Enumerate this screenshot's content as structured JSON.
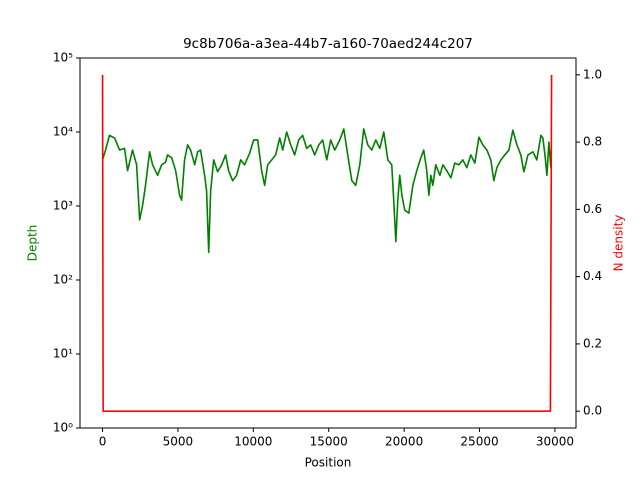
{
  "chart_data": {
    "type": "line",
    "title": "9c8b706a-a3ea-44b7-a160-70aed244c207",
    "xlabel": "Position",
    "ylabel": "Depth",
    "y2label": "N density",
    "yscale": "log",
    "xlim": [
      -1495,
      31398
    ],
    "xticks": [
      0,
      5000,
      10000,
      15000,
      20000,
      25000,
      30000
    ],
    "ylim": [
      1,
      100000
    ],
    "yticks": [
      {
        "value": 1,
        "label": "10⁰"
      },
      {
        "value": 10,
        "label": "10¹"
      },
      {
        "value": 100,
        "label": "10²"
      },
      {
        "value": 1000,
        "label": "10³"
      },
      {
        "value": 10000,
        "label": "10⁴"
      },
      {
        "value": 100000,
        "label": "10⁵"
      }
    ],
    "y2lim": [
      -0.05,
      1.05
    ],
    "y2ticks": [
      {
        "value": 0,
        "label": "0.0"
      },
      0.2,
      0.4,
      0.6,
      0.8,
      {
        "value": 1,
        "label": "1.0"
      }
    ],
    "series": [
      {
        "color": "#008000",
        "axis": "y",
        "x": [
          0,
          200,
          460,
          800,
          1130,
          1460,
          1660,
          1990,
          2260,
          2460,
          2650,
          2850,
          3120,
          3320,
          3650,
          3920,
          4180,
          4310,
          4580,
          4850,
          5110,
          5240,
          5440,
          5640,
          5840,
          6110,
          6310,
          6500,
          6770,
          6900,
          7040,
          7170,
          7370,
          7630,
          7900,
          8160,
          8360,
          8630,
          8890,
          9160,
          9420,
          9760,
          10020,
          10290,
          10550,
          10750,
          10950,
          11220,
          11480,
          11750,
          11950,
          12210,
          12480,
          12740,
          13010,
          13270,
          13540,
          13800,
          14070,
          14340,
          14600,
          14870,
          15130,
          15400,
          15730,
          16000,
          16260,
          16530,
          16790,
          17060,
          17320,
          17590,
          17850,
          18120,
          18390,
          18650,
          18920,
          19180,
          19310,
          19450,
          19580,
          19710,
          19850,
          20040,
          20310,
          20580,
          20840,
          21110,
          21300,
          21500,
          21640,
          21770,
          21900,
          22100,
          22370,
          22570,
          22830,
          23100,
          23360,
          23630,
          23890,
          24160,
          24420,
          24690,
          24960,
          25220,
          25490,
          25750,
          25950,
          26150,
          26420,
          26680,
          26950,
          27210,
          27480,
          27740,
          27940,
          28210,
          28540,
          28800,
          29070,
          29200,
          29340,
          29470,
          29600,
          29730
        ],
        "values": [
          4200,
          5700,
          9000,
          8300,
          5700,
          6000,
          3000,
          5700,
          3600,
          650,
          1000,
          1900,
          5400,
          3600,
          2600,
          3600,
          3900,
          4900,
          4500,
          3000,
          1400,
          1200,
          4200,
          6700,
          5700,
          3600,
          5400,
          5700,
          2600,
          1600,
          237,
          1600,
          4200,
          2900,
          3600,
          4900,
          3000,
          2200,
          2600,
          4200,
          3600,
          5200,
          7800,
          7800,
          3000,
          1900,
          3600,
          4200,
          4900,
          8300,
          5700,
          10000,
          6700,
          4900,
          7800,
          9000,
          6000,
          6700,
          4900,
          6700,
          7800,
          4200,
          7800,
          5700,
          7800,
          11000,
          4900,
          2200,
          1900,
          3600,
          11000,
          6700,
          5700,
          7800,
          6000,
          10000,
          4200,
          3600,
          1200,
          330,
          1200,
          2600,
          1400,
          880,
          800,
          1900,
          3000,
          4500,
          5700,
          3000,
          1400,
          2600,
          1900,
          3600,
          2600,
          3600,
          3000,
          2400,
          3800,
          3600,
          4200,
          3300,
          4900,
          3800,
          8500,
          6700,
          5700,
          4200,
          2200,
          3300,
          4200,
          4900,
          5700,
          10600,
          6700,
          4900,
          2900,
          4900,
          5400,
          4200,
          9000,
          8300,
          4900,
          2600,
          7300,
          3300
        ]
      },
      {
        "color": "#ff0000",
        "axis": "y2",
        "x": [
          0,
          40,
          29700,
          29780
        ],
        "values": [
          1,
          0,
          0,
          1
        ]
      }
    ]
  }
}
